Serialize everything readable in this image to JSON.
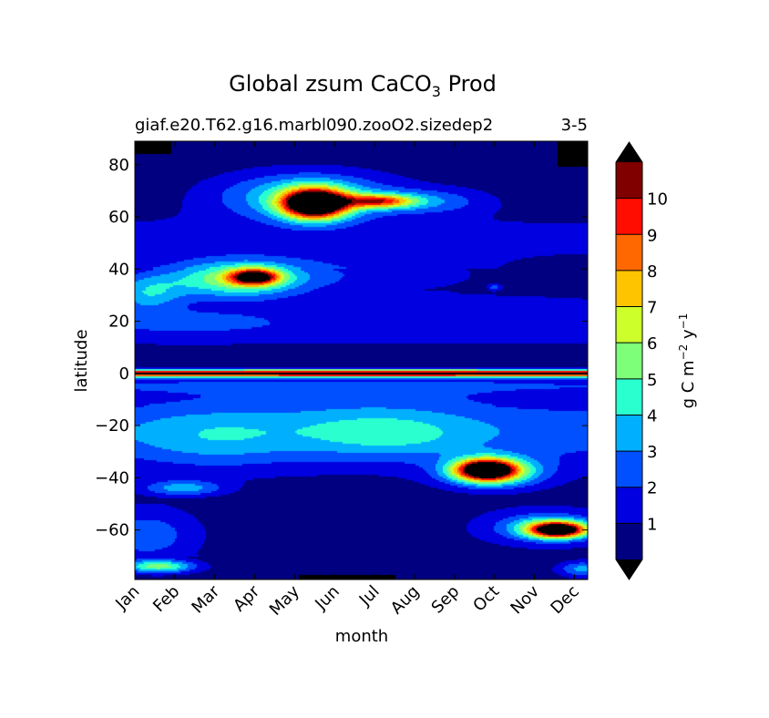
{
  "chart_data": {
    "type": "heatmap",
    "title_main": "Global zsum CaCO",
    "title_sub": "3",
    "title_end": "Prod",
    "subtitle_left": "giaf.e20.T62.g16.marbl090.zooO2.sizedep2",
    "subtitle_right": "3-5",
    "xlabel": "month",
    "ylabel": "latitude",
    "x_ticks": [
      "Jan",
      "Feb",
      "Mar",
      "Apr",
      "May",
      "Jun",
      "Jul",
      "Aug",
      "Sep",
      "Oct",
      "Nov",
      "Dec"
    ],
    "y_ticks": [
      80,
      60,
      40,
      20,
      0,
      -20,
      -40,
      -60
    ],
    "ylim": [
      -79,
      89
    ],
    "xlim": [
      0,
      11.333
    ],
    "colorbar": {
      "label_main": "g C m",
      "label_exp1": "−2",
      "label_mid": " y",
      "label_exp2": "−1",
      "tick_labels": [
        "1",
        "2",
        "3",
        "4",
        "5",
        "6",
        "7",
        "8",
        "9",
        "10"
      ],
      "levels": [
        0,
        1,
        2,
        3,
        4,
        5,
        6,
        7,
        8,
        9,
        10,
        11
      ],
      "colors": [
        "#000080",
        "#0000e0",
        "#0050ff",
        "#00b0ff",
        "#2affd0",
        "#7dff7a",
        "#cdff2a",
        "#ffc400",
        "#ff6800",
        "#ff0d00",
        "#800000"
      ],
      "under_color": "#000000",
      "over_color": "#000000"
    },
    "features": [
      {
        "x": 4.5,
        "y": 65,
        "sx": 0.8,
        "sy": 5.5,
        "amp": 14
      },
      {
        "x": 6.1,
        "y": 66,
        "sx": 0.9,
        "sy": 2.6,
        "amp": 7
      },
      {
        "x": 4.3,
        "y": 68,
        "sx": 2.2,
        "sy": 9,
        "amp": 4
      },
      {
        "x": 7.5,
        "y": 66,
        "sx": 1.4,
        "sy": 5,
        "amp": 2
      },
      {
        "x": 3.0,
        "y": 37,
        "sx": 0.6,
        "sy": 3,
        "amp": 9
      },
      {
        "x": 2.5,
        "y": 36,
        "sx": 1.7,
        "sy": 7,
        "amp": 5
      },
      {
        "x": 0.3,
        "y": 31,
        "sx": 0.9,
        "sy": 7,
        "amp": 3
      },
      {
        "x": 5.5,
        "y": 38,
        "sx": 3.5,
        "sy": 8,
        "amp": 1.3
      },
      {
        "x": 8.8,
        "y": -37,
        "sx": 0.75,
        "sy": 4,
        "amp": 12
      },
      {
        "x": 9.0,
        "y": -38,
        "sx": 1.3,
        "sy": 6,
        "amp": 4
      },
      {
        "x": 10.6,
        "y": -60,
        "sx": 0.7,
        "sy": 3,
        "amp": 11
      },
      {
        "x": 10.3,
        "y": -59,
        "sx": 1.2,
        "sy": 5,
        "amp": 4
      },
      {
        "x": 6.0,
        "y": -20,
        "sx": 2.5,
        "sy": 12,
        "amp": 1.5
      },
      {
        "x": 6.5,
        "y": -25,
        "sx": 2.0,
        "sy": 7,
        "amp": 0.9
      },
      {
        "x": 1.2,
        "y": -44,
        "sx": 1.0,
        "sy": 3,
        "amp": 3
      },
      {
        "x": 0.3,
        "y": -62,
        "sx": 1.0,
        "sy": 8,
        "amp": 2.2
      },
      {
        "x": 0.6,
        "y": -74,
        "sx": 0.9,
        "sy": 2.5,
        "amp": 5
      },
      {
        "x": 11.2,
        "y": -75,
        "sx": 0.6,
        "sy": 3,
        "amp": 3
      },
      {
        "x": 2.0,
        "y": -25,
        "sx": 2.0,
        "sy": 12,
        "amp": 1.5
      },
      {
        "x": 9.0,
        "y": 33,
        "sx": 0.15,
        "sy": 1,
        "amp": 2
      },
      {
        "x": 9.5,
        "y": 25,
        "sx": 3.0,
        "sy": 5,
        "amp": 0.8
      },
      {
        "x": 1.5,
        "y": 20,
        "sx": 2.5,
        "sy": 5,
        "amp": 1.0
      }
    ]
  }
}
